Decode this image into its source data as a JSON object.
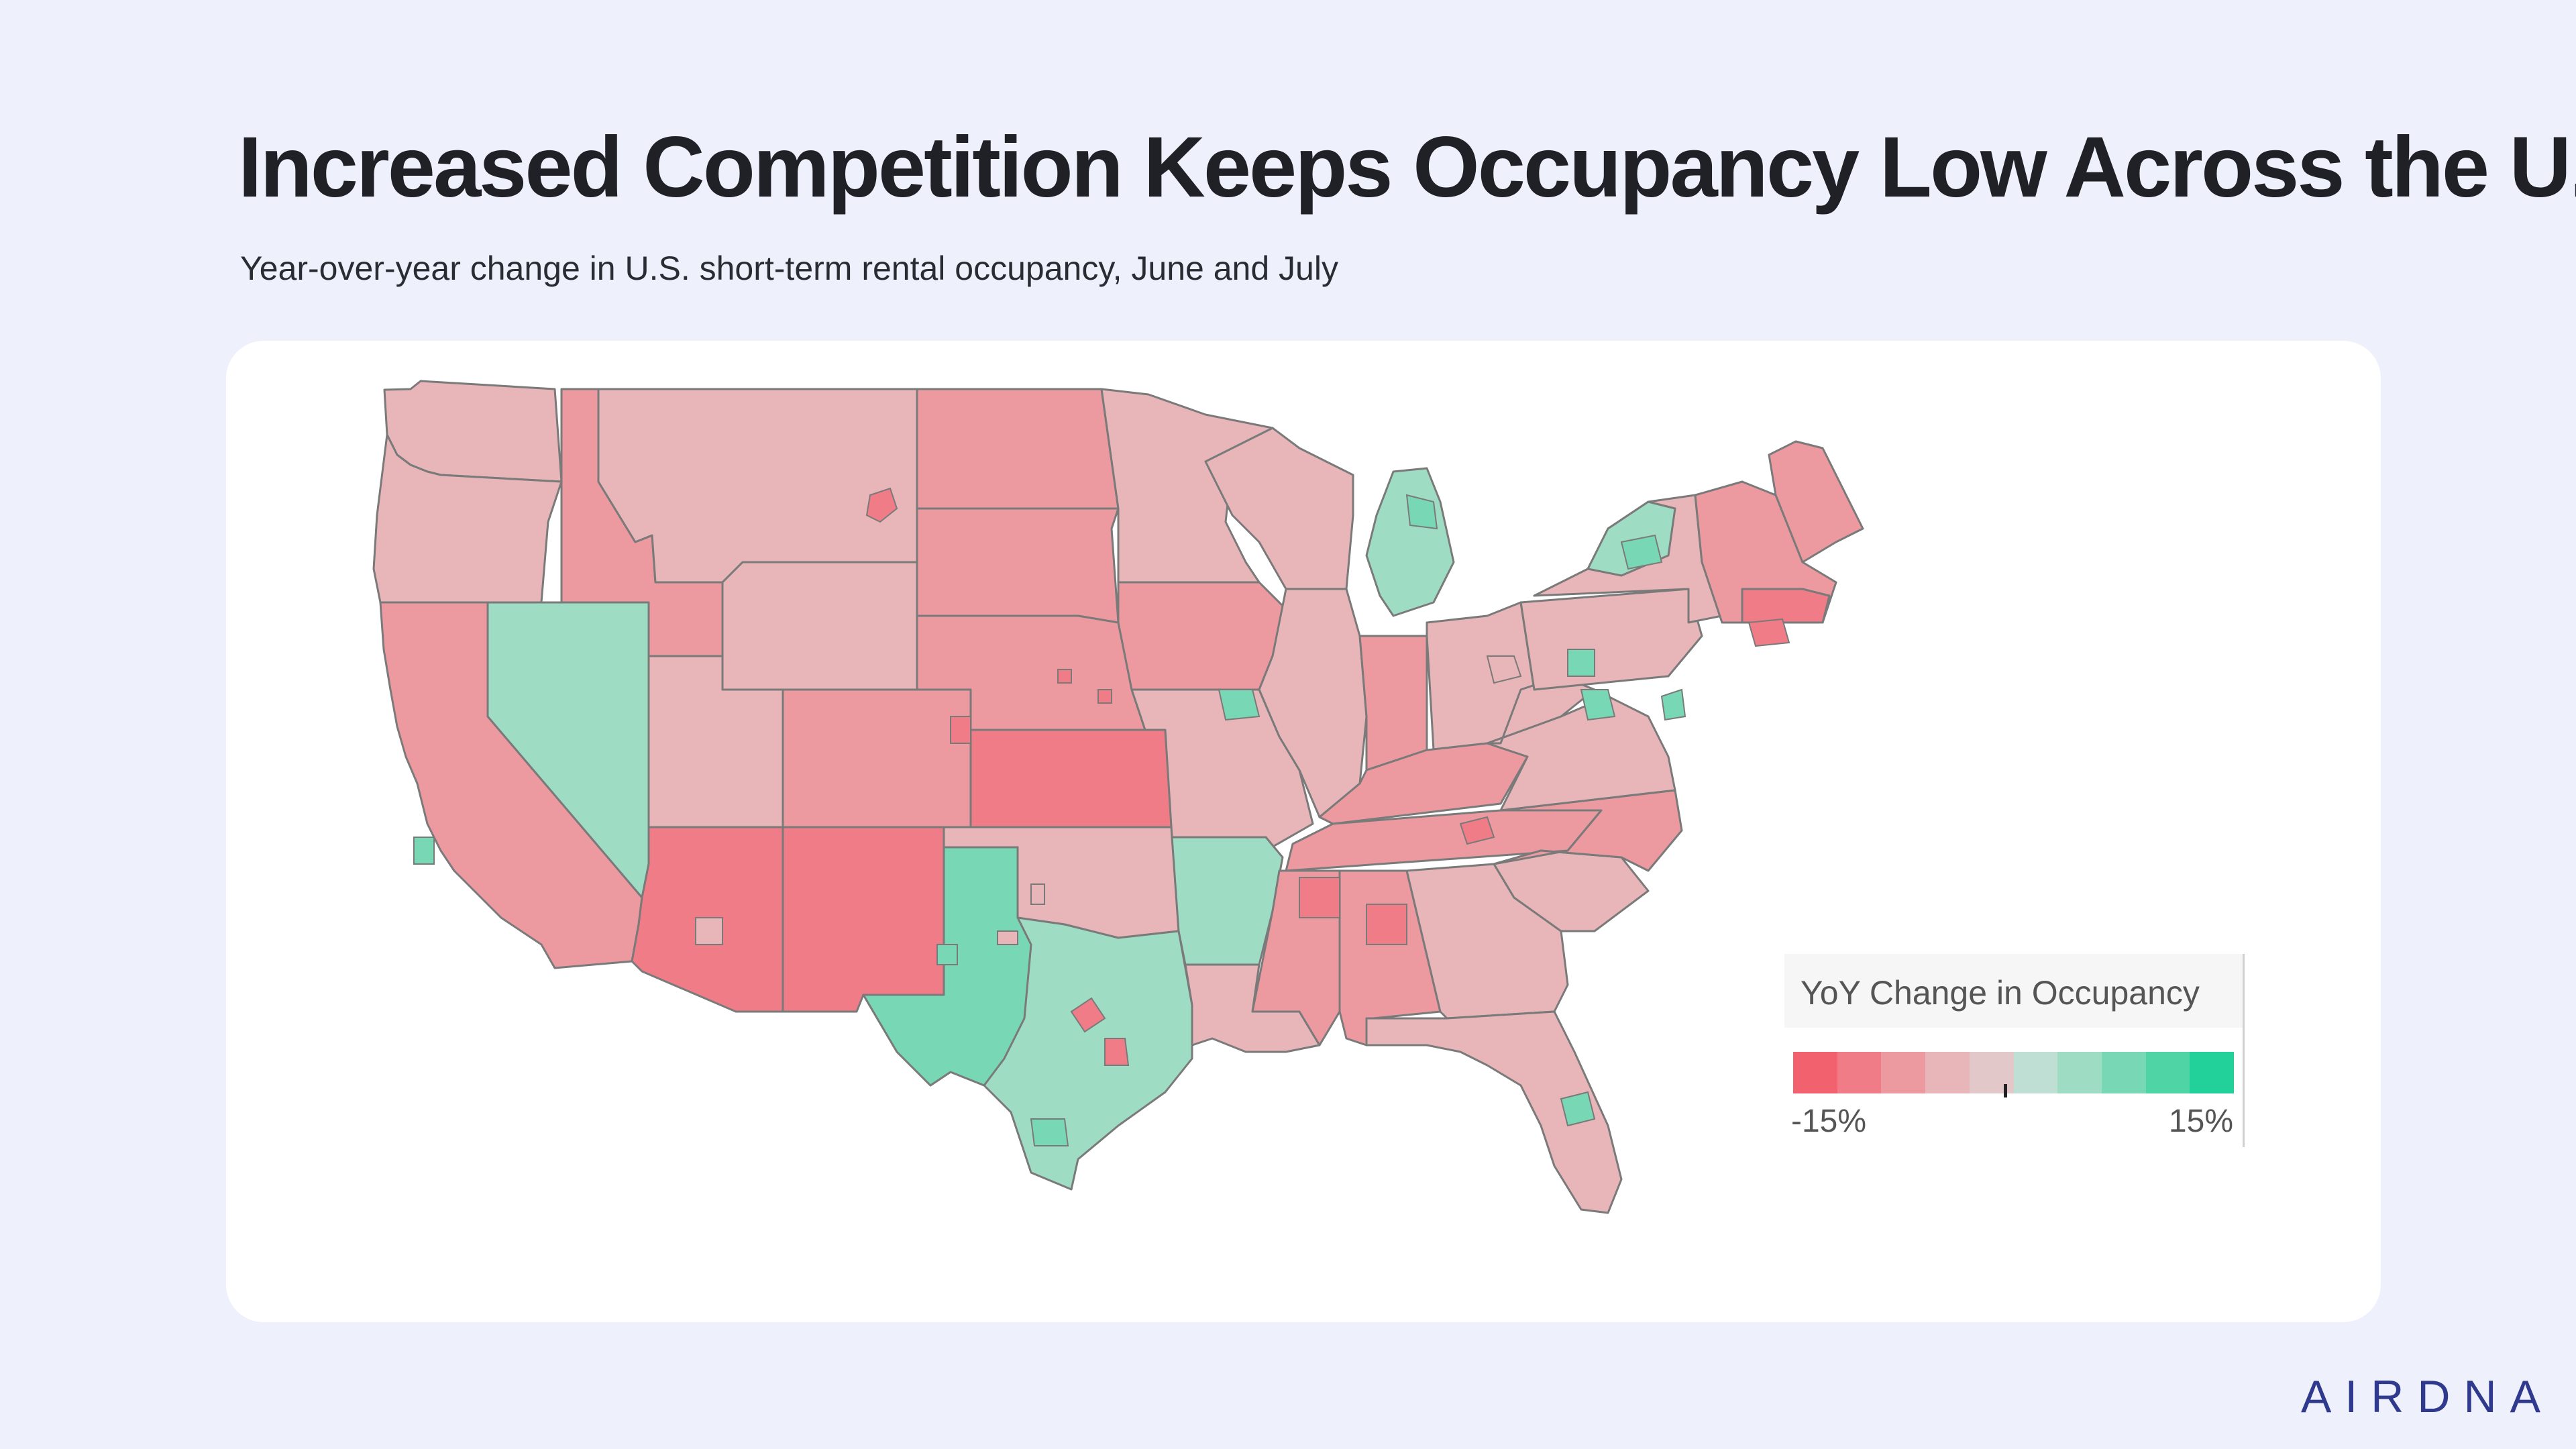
{
  "title": "Increased Competition Keeps Occupancy Low Across the U.S.",
  "subtitle": "Year-over-year change in U.S. short-term rental occupancy, June and July",
  "legend": {
    "title": "YoY Change in Occupancy",
    "min_label": "-15%",
    "max_label": "15%",
    "min_value": -15,
    "max_value": 15,
    "colors": [
      "#f2616e",
      "#ef7c86",
      "#ec9aa0",
      "#e8b5b8",
      "#e3c8ca",
      "#bfdfd4",
      "#9fdcc4",
      "#78d8b5",
      "#4fd4a6",
      "#22d199"
    ]
  },
  "brand": "AIRDNA",
  "colors": {
    "background": "#eef0fb",
    "card": "#ffffff",
    "border": "#7a7a7a",
    "brand": "#2f3a8f"
  },
  "chart_data": {
    "type": "choropleth",
    "value_unit": "% YoY change in occupancy",
    "approximate": true,
    "regions": [
      {
        "name": "Washington",
        "value": -4
      },
      {
        "name": "Oregon",
        "value": -4
      },
      {
        "name": "California",
        "value": -7
      },
      {
        "name": "Nevada",
        "value": 3
      },
      {
        "name": "Idaho",
        "value": -8
      },
      {
        "name": "Montana",
        "value": -4
      },
      {
        "name": "Wyoming",
        "value": -6
      },
      {
        "name": "Utah",
        "value": -5
      },
      {
        "name": "Colorado",
        "value": -7
      },
      {
        "name": "Arizona",
        "value": -10
      },
      {
        "name": "New Mexico",
        "value": -10
      },
      {
        "name": "North Dakota",
        "value": -7
      },
      {
        "name": "South Dakota",
        "value": -7
      },
      {
        "name": "Nebraska",
        "value": -7
      },
      {
        "name": "Kansas",
        "value": -10
      },
      {
        "name": "Oklahoma",
        "value": -4
      },
      {
        "name": "Texas",
        "value": 3
      },
      {
        "name": "West Texas",
        "value": 7
      },
      {
        "name": "Minnesota",
        "value": -4
      },
      {
        "name": "Iowa",
        "value": -7
      },
      {
        "name": "Missouri",
        "value": -4
      },
      {
        "name": "Arkansas",
        "value": 3
      },
      {
        "name": "Louisiana",
        "value": -4
      },
      {
        "name": "Wisconsin",
        "value": -4
      },
      {
        "name": "Illinois",
        "value": -4
      },
      {
        "name": "Michigan",
        "value": 3
      },
      {
        "name": "Indiana",
        "value": -7
      },
      {
        "name": "Ohio",
        "value": -4
      },
      {
        "name": "Kentucky",
        "value": -7
      },
      {
        "name": "Tennessee",
        "value": -7
      },
      {
        "name": "Mississippi",
        "value": -7
      },
      {
        "name": "Alabama",
        "value": -8
      },
      {
        "name": "Georgia",
        "value": -4
      },
      {
        "name": "Florida",
        "value": -4
      },
      {
        "name": "South Carolina",
        "value": -4
      },
      {
        "name": "North Carolina",
        "value": -7
      },
      {
        "name": "Virginia",
        "value": -4
      },
      {
        "name": "West Virginia",
        "value": -4
      },
      {
        "name": "Pennsylvania",
        "value": -4
      },
      {
        "name": "New York",
        "value": -4
      },
      {
        "name": "Upstate New York",
        "value": 3
      },
      {
        "name": "New England",
        "value": -7
      },
      {
        "name": "Maine",
        "value": -7
      },
      {
        "name": "Massachusetts",
        "value": -12
      }
    ]
  }
}
